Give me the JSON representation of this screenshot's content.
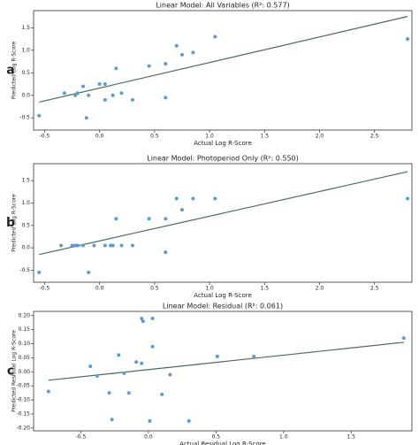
{
  "chart_data": [
    {
      "type": "scatter",
      "panel_label": "a",
      "title": "Linear Model: All Variables (R²: 0.577)",
      "x_label": "Actual Log R-Score",
      "y_label": "Predicted Log R-Score",
      "color": "#5b9bd5",
      "line_color": "#4a6a58",
      "x": [
        -0.55,
        -0.32,
        -0.22,
        -0.2,
        -0.15,
        -0.12,
        -0.1,
        0.0,
        0.05,
        0.05,
        0.12,
        0.15,
        0.2,
        0.3,
        0.45,
        0.6,
        0.6,
        0.7,
        0.75,
        0.85,
        1.05,
        2.8
      ],
      "y": [
        -0.45,
        0.05,
        0.0,
        0.05,
        0.2,
        -0.5,
        0.0,
        0.25,
        -0.1,
        0.25,
        0.0,
        0.6,
        0.05,
        -0.1,
        0.65,
        0.7,
        -0.05,
        1.1,
        0.9,
        0.95,
        1.3,
        1.25
      ],
      "fit": {
        "x": [
          -0.55,
          2.8
        ],
        "y": [
          -0.15,
          1.75
        ]
      },
      "xlim": [
        -0.6,
        2.84
      ],
      "ylim": [
        -0.77,
        1.88
      ],
      "xticks": [
        -0.5,
        {
          "value": 0,
          "label": "0.0"
        },
        0.5,
        {
          "value": 1,
          "label": "1.0"
        },
        1.5,
        {
          "value": 2,
          "label": "2.0"
        },
        2.5
      ],
      "yticks": [
        -0.5,
        {
          "value": 0,
          "label": "0.0"
        },
        0.5,
        {
          "value": 1,
          "label": "1.0"
        },
        1.5
      ]
    },
    {
      "type": "scatter",
      "panel_label": "b",
      "title": "Linear Model: Photoperiod Only (R²: 0.550)",
      "x_label": "Actual Log R-Score",
      "y_label": "Predicted Log R-Score",
      "color": "#5b9bd5",
      "line_color": "#4a6a58",
      "x": [
        -0.55,
        -0.35,
        -0.25,
        -0.22,
        -0.2,
        -0.15,
        -0.1,
        -0.05,
        0.05,
        0.1,
        0.12,
        0.15,
        0.2,
        0.3,
        0.45,
        0.6,
        0.6,
        0.7,
        0.75,
        0.85,
        1.05,
        2.8
      ],
      "y": [
        -0.55,
        0.05,
        0.05,
        0.05,
        0.05,
        0.05,
        -0.55,
        0.05,
        0.05,
        0.05,
        0.05,
        0.65,
        0.05,
        0.05,
        0.65,
        0.65,
        -0.1,
        1.1,
        0.85,
        1.1,
        1.1,
        1.1
      ],
      "fit": {
        "x": [
          -0.55,
          2.8
        ],
        "y": [
          -0.15,
          1.7
        ]
      },
      "xlim": [
        -0.6,
        2.84
      ],
      "ylim": [
        -0.77,
        1.88
      ],
      "xticks": [
        -0.5,
        {
          "value": 0,
          "label": "0.0"
        },
        0.5,
        {
          "value": 1,
          "label": "1.0"
        },
        1.5,
        {
          "value": 2,
          "label": "2.0"
        },
        2.5
      ],
      "yticks": [
        -0.5,
        {
          "value": 0,
          "label": "0.0"
        },
        0.5,
        {
          "value": 1,
          "label": "1.0"
        },
        1.5
      ]
    },
    {
      "type": "scatter",
      "panel_label": "c",
      "title": "Linear Model: Residual (R²: 0.061)",
      "x_label": "Actual Residual Log R-Score",
      "y_label": "Predicted Residual Log R-Score",
      "color": "#5b9bd5",
      "line_color": "#4a6a58",
      "x": [
        -0.74,
        -0.43,
        -0.38,
        -0.29,
        -0.27,
        -0.22,
        -0.18,
        -0.145,
        -0.09,
        -0.05,
        -0.05,
        -0.04,
        0.01,
        0.03,
        0.03,
        0.1,
        0.16,
        0.3,
        0.51,
        0.78,
        1.89
      ],
      "y": [
        -0.07,
        0.02,
        -0.015,
        -0.075,
        -0.17,
        0.06,
        -0.005,
        -0.075,
        0.035,
        0.03,
        0.19,
        0.18,
        -0.175,
        0.09,
        0.19,
        -0.08,
        -0.01,
        -0.175,
        0.055,
        0.055,
        0.12
      ],
      "fit": {
        "x": [
          -0.74,
          1.89
        ],
        "y": [
          -0.03,
          0.105
        ]
      },
      "xlim": [
        -0.85,
        1.95
      ],
      "ylim": [
        -0.21,
        0.215
      ],
      "xticks": [
        -0.5,
        {
          "value": 0,
          "label": "0.0"
        },
        0.5,
        {
          "value": 1,
          "label": "1.0"
        },
        1.5
      ],
      "yticks": [
        {
          "value": -0.2,
          "label": "-0.20"
        },
        -0.15,
        {
          "value": -0.1,
          "label": "-0.10"
        },
        -0.05,
        {
          "value": 0,
          "label": "0.00"
        },
        0.05,
        {
          "value": 0.1,
          "label": "0.10"
        },
        0.15,
        {
          "value": 0.2,
          "label": "0.20"
        }
      ]
    }
  ]
}
